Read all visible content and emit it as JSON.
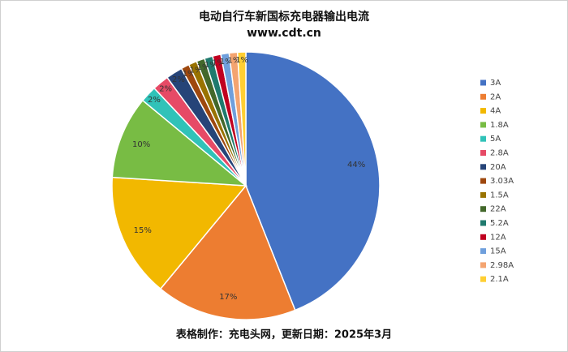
{
  "chart_data": {
    "type": "pie",
    "title": "电动自行车新国标充电器输出电流",
    "subtitle": "www.cdt.cn",
    "footer": "表格制作：充电头网，更新日期：2025年3月",
    "categories": [
      "3A",
      "2A",
      "4A",
      "1.8A",
      "5A",
      "2.8A",
      "20A",
      "3.03A",
      "1.5A",
      "22A",
      "5.2A",
      "12A",
      "15A",
      "2.98A",
      "2.1A"
    ],
    "values": [
      44,
      17,
      15,
      10,
      2,
      2,
      2,
      1,
      1,
      1,
      1,
      1,
      1,
      1,
      1
    ],
    "value_labels": [
      "44%",
      "17%",
      "15%",
      "10%",
      "2%",
      "2%",
      "2%",
      "1%",
      "1%",
      "1%",
      "1%",
      "1%",
      "1%",
      "1%",
      "1%"
    ],
    "colors": [
      "#4472c4",
      "#ed7d31",
      "#f2b800",
      "#78bc44",
      "#30c2b8",
      "#e64a66",
      "#264478",
      "#9e480e",
      "#997300",
      "#43682b",
      "#1f7a6e",
      "#c00020",
      "#6f9fdc",
      "#f4a470",
      "#ffcf33"
    ],
    "legend": "right"
  }
}
